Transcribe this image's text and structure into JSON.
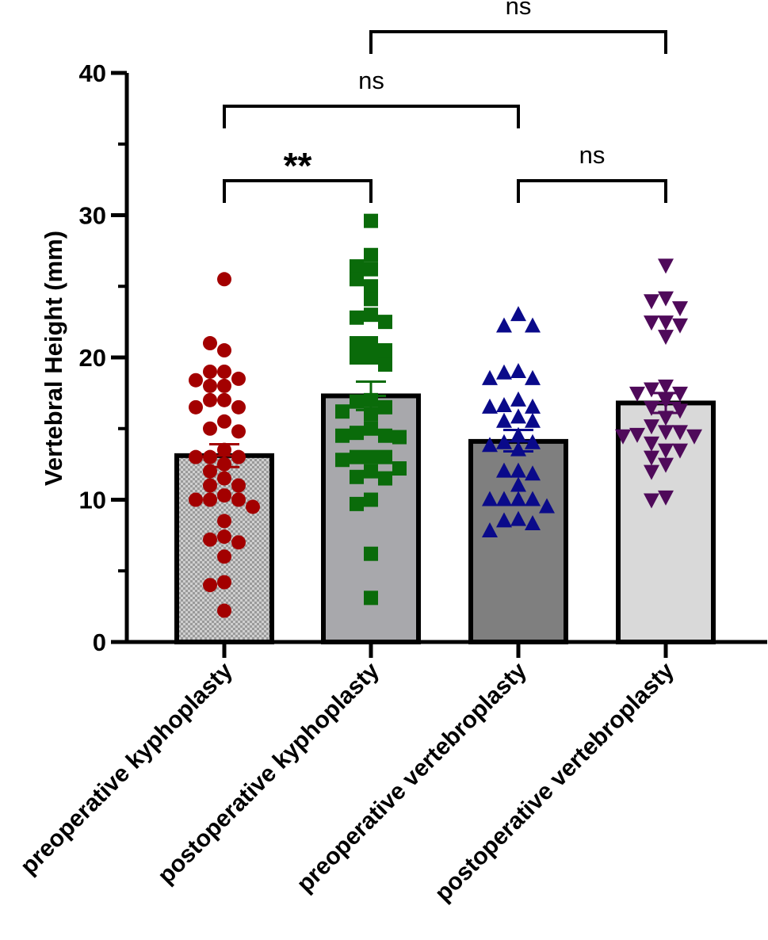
{
  "chart_data": {
    "type": "bar",
    "title": "",
    "xlabel": "",
    "ylabel": "Vertebral Height (mm)",
    "ylim": [
      0,
      40
    ],
    "yticks": [
      0,
      10,
      20,
      30,
      40
    ],
    "grid": false,
    "categories": [
      "preoperative kyphoplasty",
      "postoperative kyphoplasty",
      "preoperative vertebroplasty",
      "postoperative vertebroplasty"
    ],
    "means": [
      13.1,
      17.3,
      14.1,
      16.8
    ],
    "error": [
      [
        12.3,
        13.9
      ],
      [
        16.3,
        18.3
      ],
      [
        13.4,
        14.9
      ],
      [
        16.1,
        17.5
      ]
    ],
    "bar_colors": [
      "#b8b8b8",
      "#a8a8ac",
      "#7f7f7f",
      "#d9d9d9"
    ],
    "marker_colors": [
      "#a30000",
      "#0a6b0a",
      "#0a0a8a",
      "#4f0a5a"
    ],
    "markers": [
      "circle",
      "square",
      "triangle-up",
      "triangle-down"
    ],
    "points": [
      [
        25.5,
        20.5,
        21.0,
        19.0,
        19.0,
        18.5,
        18.4,
        18.0,
        18.0,
        17.0,
        17.0,
        16.5,
        16.5,
        15.5,
        15.0,
        14.8,
        13.5,
        13.0,
        13.0,
        13.0,
        12.5,
        12.0,
        11.5,
        11.0,
        11.0,
        10.3,
        10.0,
        10.0,
        10.0,
        9.5,
        8.5,
        7.4,
        7.2,
        7.0,
        6.0,
        4.2,
        4.0,
        2.2
      ],
      [
        29.6,
        27.2,
        26.4,
        26.2,
        25.5,
        25.0,
        24.1,
        23.0,
        22.8,
        22.5,
        21.0,
        21.0,
        20.5,
        20.0,
        20.0,
        19.5,
        17.0,
        16.9,
        16.5,
        16.2,
        16.0,
        15.0,
        14.7,
        14.5,
        14.5,
        14.4,
        13.0,
        13.0,
        13.0,
        12.8,
        12.2,
        12.0,
        11.6,
        11.5,
        10.0,
        9.7,
        6.2,
        3.1
      ],
      [
        23.0,
        22.2,
        22.2,
        19.0,
        18.9,
        18.5,
        18.5,
        17.0,
        16.6,
        16.5,
        16.5,
        15.8,
        15.5,
        15.5,
        14.5,
        14.0,
        14.0,
        13.8,
        13.5,
        12.0,
        12.0,
        11.8,
        11.0,
        10.0,
        10.0,
        10.0,
        10.0,
        9.5,
        8.6,
        8.5,
        8.3,
        7.8
      ],
      [
        26.5,
        24.2,
        24.0,
        23.5,
        22.5,
        22.5,
        22.3,
        21.5,
        18.0,
        17.8,
        17.5,
        17.5,
        17.0,
        16.5,
        16.3,
        15.8,
        15.2,
        14.8,
        14.8,
        14.6,
        14.5,
        14.5,
        14.0,
        13.5,
        13.5,
        13.0,
        12.5,
        12.0,
        10.2,
        10.0
      ]
    ],
    "comparisons": [
      {
        "groups": [
          0,
          1
        ],
        "label": "**",
        "level": 0
      },
      {
        "groups": [
          2,
          3
        ],
        "label": "ns",
        "level": 0
      },
      {
        "groups": [
          0,
          2
        ],
        "label": "ns",
        "level": 1
      },
      {
        "groups": [
          1,
          3
        ],
        "label": "ns",
        "level": 2
      }
    ]
  }
}
